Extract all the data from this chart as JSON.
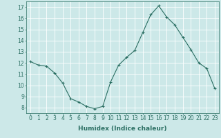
{
  "x": [
    0,
    1,
    2,
    3,
    4,
    5,
    6,
    7,
    8,
    9,
    10,
    11,
    12,
    13,
    14,
    15,
    16,
    17,
    18,
    19,
    20,
    21,
    22,
    23
  ],
  "y": [
    12.1,
    11.8,
    11.7,
    11.1,
    10.2,
    8.8,
    8.5,
    8.1,
    7.9,
    8.1,
    10.3,
    11.8,
    12.5,
    13.1,
    14.7,
    16.3,
    17.1,
    16.1,
    15.4,
    14.3,
    13.2,
    12.0,
    11.5,
    9.7
  ],
  "line_color": "#2a6e62",
  "marker": "+",
  "marker_size": 3,
  "marker_linewidth": 0.8,
  "background_color": "#cce8e8",
  "grid_color": "#b8d8d8",
  "xlabel": "Humidex (Indice chaleur)",
  "xlim": [
    -0.5,
    23.5
  ],
  "ylim": [
    7.5,
    17.5
  ],
  "xticks": [
    0,
    1,
    2,
    3,
    4,
    5,
    6,
    7,
    8,
    9,
    10,
    11,
    12,
    13,
    14,
    15,
    16,
    17,
    18,
    19,
    20,
    21,
    22,
    23
  ],
  "yticks": [
    8,
    9,
    10,
    11,
    12,
    13,
    14,
    15,
    16,
    17
  ],
  "tick_fontsize": 5.5,
  "xlabel_fontsize": 6.5,
  "line_width": 0.8
}
